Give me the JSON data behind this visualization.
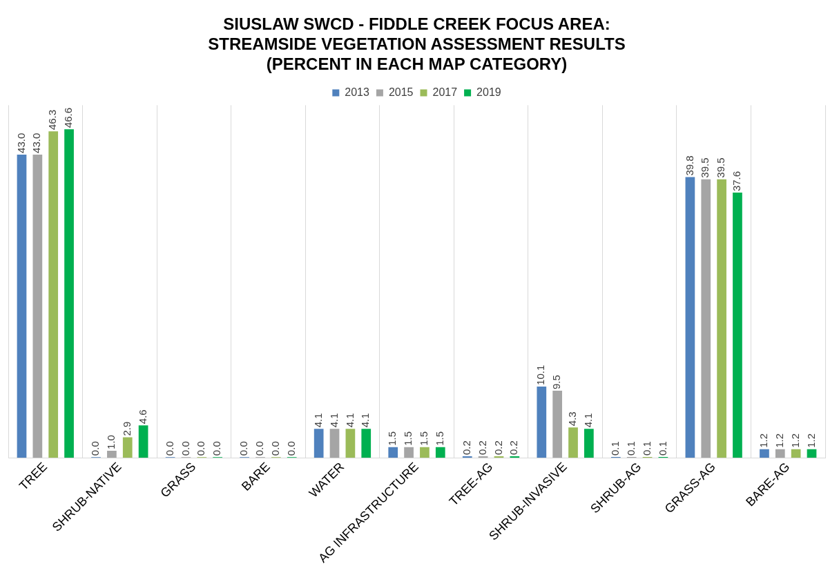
{
  "chart_data": {
    "type": "bar",
    "title": "SIUSLAW SWCD - FIDDLE CREEK FOCUS AREA:\nSTREAMSIDE VEGETATION ASSESSMENT RESULTS\n(PERCENT IN EACH MAP CATEGORY)",
    "categories": [
      "TREE",
      "SHRUB-NATIVE",
      "GRASS",
      "BARE",
      "WATER",
      "AG INFRASTRUCTURE",
      "TREE-AG",
      "SHRUB-INVASIVE",
      "SHRUB-AG",
      "GRASS-AG",
      "BARE-AG"
    ],
    "series": [
      {
        "name": "2013",
        "color": "#4f81bd",
        "values": [
          43.0,
          0.0,
          0.0,
          0.0,
          4.1,
          1.5,
          0.2,
          10.1,
          0.1,
          39.8,
          1.2
        ],
        "value_labels": [
          "43.0",
          "0.0",
          "0.0",
          "0.0",
          "4.1",
          "1.5",
          "0.2",
          "10.1",
          "0.1",
          "39.8",
          "1.2"
        ]
      },
      {
        "name": "2015",
        "color": "#a5a5a5",
        "values": [
          43.0,
          1.0,
          0.0,
          0.0,
          4.1,
          1.5,
          0.2,
          9.5,
          0.1,
          39.5,
          1.2
        ],
        "value_labels": [
          "43.0",
          "1.0",
          "0.0",
          "0.0",
          "4.1",
          "1.5",
          "0.2",
          "9.5",
          "0.1",
          "39.5",
          "1.2"
        ]
      },
      {
        "name": "2017",
        "color": "#9bbb59",
        "values": [
          46.3,
          2.9,
          0.0,
          0.0,
          4.1,
          1.5,
          0.2,
          4.3,
          0.1,
          39.5,
          1.2
        ],
        "value_labels": [
          "46.3",
          "2.9",
          "0.0",
          "0.0",
          "4.1",
          "1.5",
          "0.2",
          "4.3",
          "0.1",
          "39.5",
          "1.2"
        ]
      },
      {
        "name": "2019",
        "color": "#00b050",
        "values": [
          46.6,
          4.6,
          0.0,
          0.0,
          4.1,
          1.5,
          0.2,
          4.1,
          0.1,
          37.6,
          1.2
        ],
        "value_labels": [
          "46.6",
          "4.6",
          "0.0",
          "0.0",
          "4.1",
          "1.5",
          "0.2",
          "4.1",
          "0.1",
          "37.6",
          "1.2"
        ]
      }
    ],
    "grid": "x",
    "legend": "top",
    "tick_labels": "x"
  }
}
